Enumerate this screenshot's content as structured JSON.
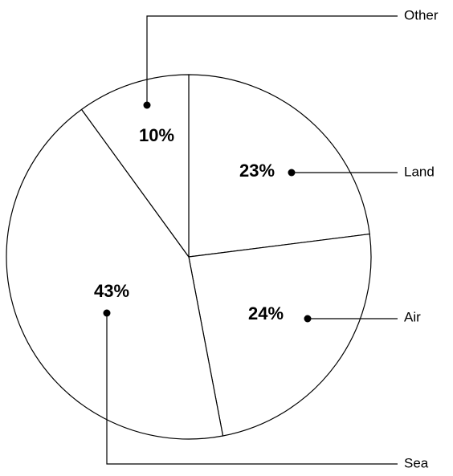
{
  "chart_data": {
    "type": "pie",
    "categories": [
      "Land",
      "Air",
      "Sea",
      "Other"
    ],
    "values": [
      23,
      24,
      43,
      10
    ],
    "value_labels": [
      "23%",
      "24%",
      "43%",
      "10%"
    ],
    "color": "#ffffff"
  }
}
